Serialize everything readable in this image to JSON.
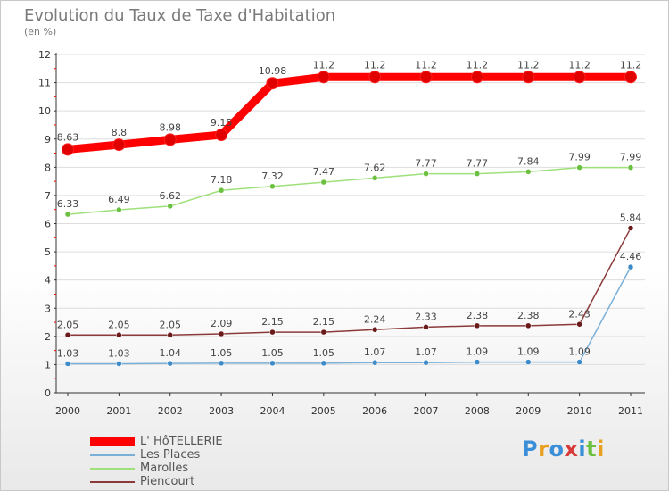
{
  "header": {
    "title": "Evolution du Taux de Taxe d'Habitation",
    "unit": "(en %)"
  },
  "chart_data": {
    "type": "line",
    "title": "Evolution du Taux de Taxe d'Habitation",
    "ylabel": "(en %)",
    "xlabel": "",
    "x": [
      "2000",
      "2001",
      "2002",
      "2003",
      "2004",
      "2005",
      "2006",
      "2007",
      "2008",
      "2009",
      "2010",
      "2011"
    ],
    "ylim": [
      0,
      12
    ],
    "yticks": [
      "0",
      "1",
      "2",
      "3",
      "4",
      "5",
      "6",
      "7",
      "8",
      "9",
      "10",
      "11",
      "12"
    ],
    "legend_position": "bottom-left",
    "series": [
      {
        "name": "L' HôTELLERIE",
        "color": "#ff0000",
        "marker": "#e00000",
        "values": [
          8.63,
          8.8,
          8.98,
          9.15,
          10.98,
          11.2,
          11.2,
          11.2,
          11.2,
          11.2,
          11.2,
          11.2
        ],
        "labels": [
          "8.63",
          "8.8",
          "8.98",
          "9.15",
          "10.98",
          "11.2",
          "11.2",
          "11.2",
          "11.2",
          "11.2",
          "11.2",
          "11.2"
        ]
      },
      {
        "name": "Les Places",
        "color": "#7ab0d8",
        "marker": "#3d8bc9",
        "values": [
          1.03,
          1.03,
          1.04,
          1.05,
          1.05,
          1.05,
          1.07,
          1.07,
          1.09,
          1.09,
          1.09,
          4.46
        ],
        "labels": [
          "1.03",
          "1.03",
          "1.04",
          "1.05",
          "1.05",
          "1.05",
          "1.07",
          "1.07",
          "1.09",
          "1.09",
          "1.09",
          "4.46"
        ]
      },
      {
        "name": "Marolles",
        "color": "#9ee07a",
        "marker": "#6cc040",
        "values": [
          6.33,
          6.49,
          6.62,
          7.18,
          7.32,
          7.47,
          7.62,
          7.77,
          7.77,
          7.84,
          7.99,
          7.99
        ],
        "labels": [
          "6.33",
          "6.49",
          "6.62",
          "7.18",
          "7.32",
          "7.47",
          "7.62",
          "7.77",
          "7.77",
          "7.84",
          "7.99",
          "7.99"
        ]
      },
      {
        "name": "Piencourt",
        "color": "#8b3a3a",
        "marker": "#6b1a1a",
        "values": [
          2.05,
          2.05,
          2.05,
          2.09,
          2.15,
          2.15,
          2.24,
          2.33,
          2.38,
          2.38,
          2.43,
          5.84
        ],
        "labels": [
          "2.05",
          "2.05",
          "2.05",
          "2.09",
          "2.15",
          "2.15",
          "2.24",
          "2.33",
          "2.38",
          "2.38",
          "2.43",
          "5.84"
        ]
      }
    ]
  },
  "legend": {
    "items": [
      {
        "label": "L' HôTELLERIE",
        "color": "#ff0000"
      },
      {
        "label": "Les Places",
        "color": "#7ab0d8"
      },
      {
        "label": "Marolles",
        "color": "#9ee07a"
      },
      {
        "label": "Piencourt",
        "color": "#8b3a3a"
      }
    ]
  },
  "logo": {
    "text": "Proxiti",
    "letter_colors": [
      "#3a8fd8",
      "#e8a020",
      "#3a8fd8",
      "#d83a3a",
      "#3a8fd8",
      "#6cc040",
      "#e8a020"
    ]
  }
}
